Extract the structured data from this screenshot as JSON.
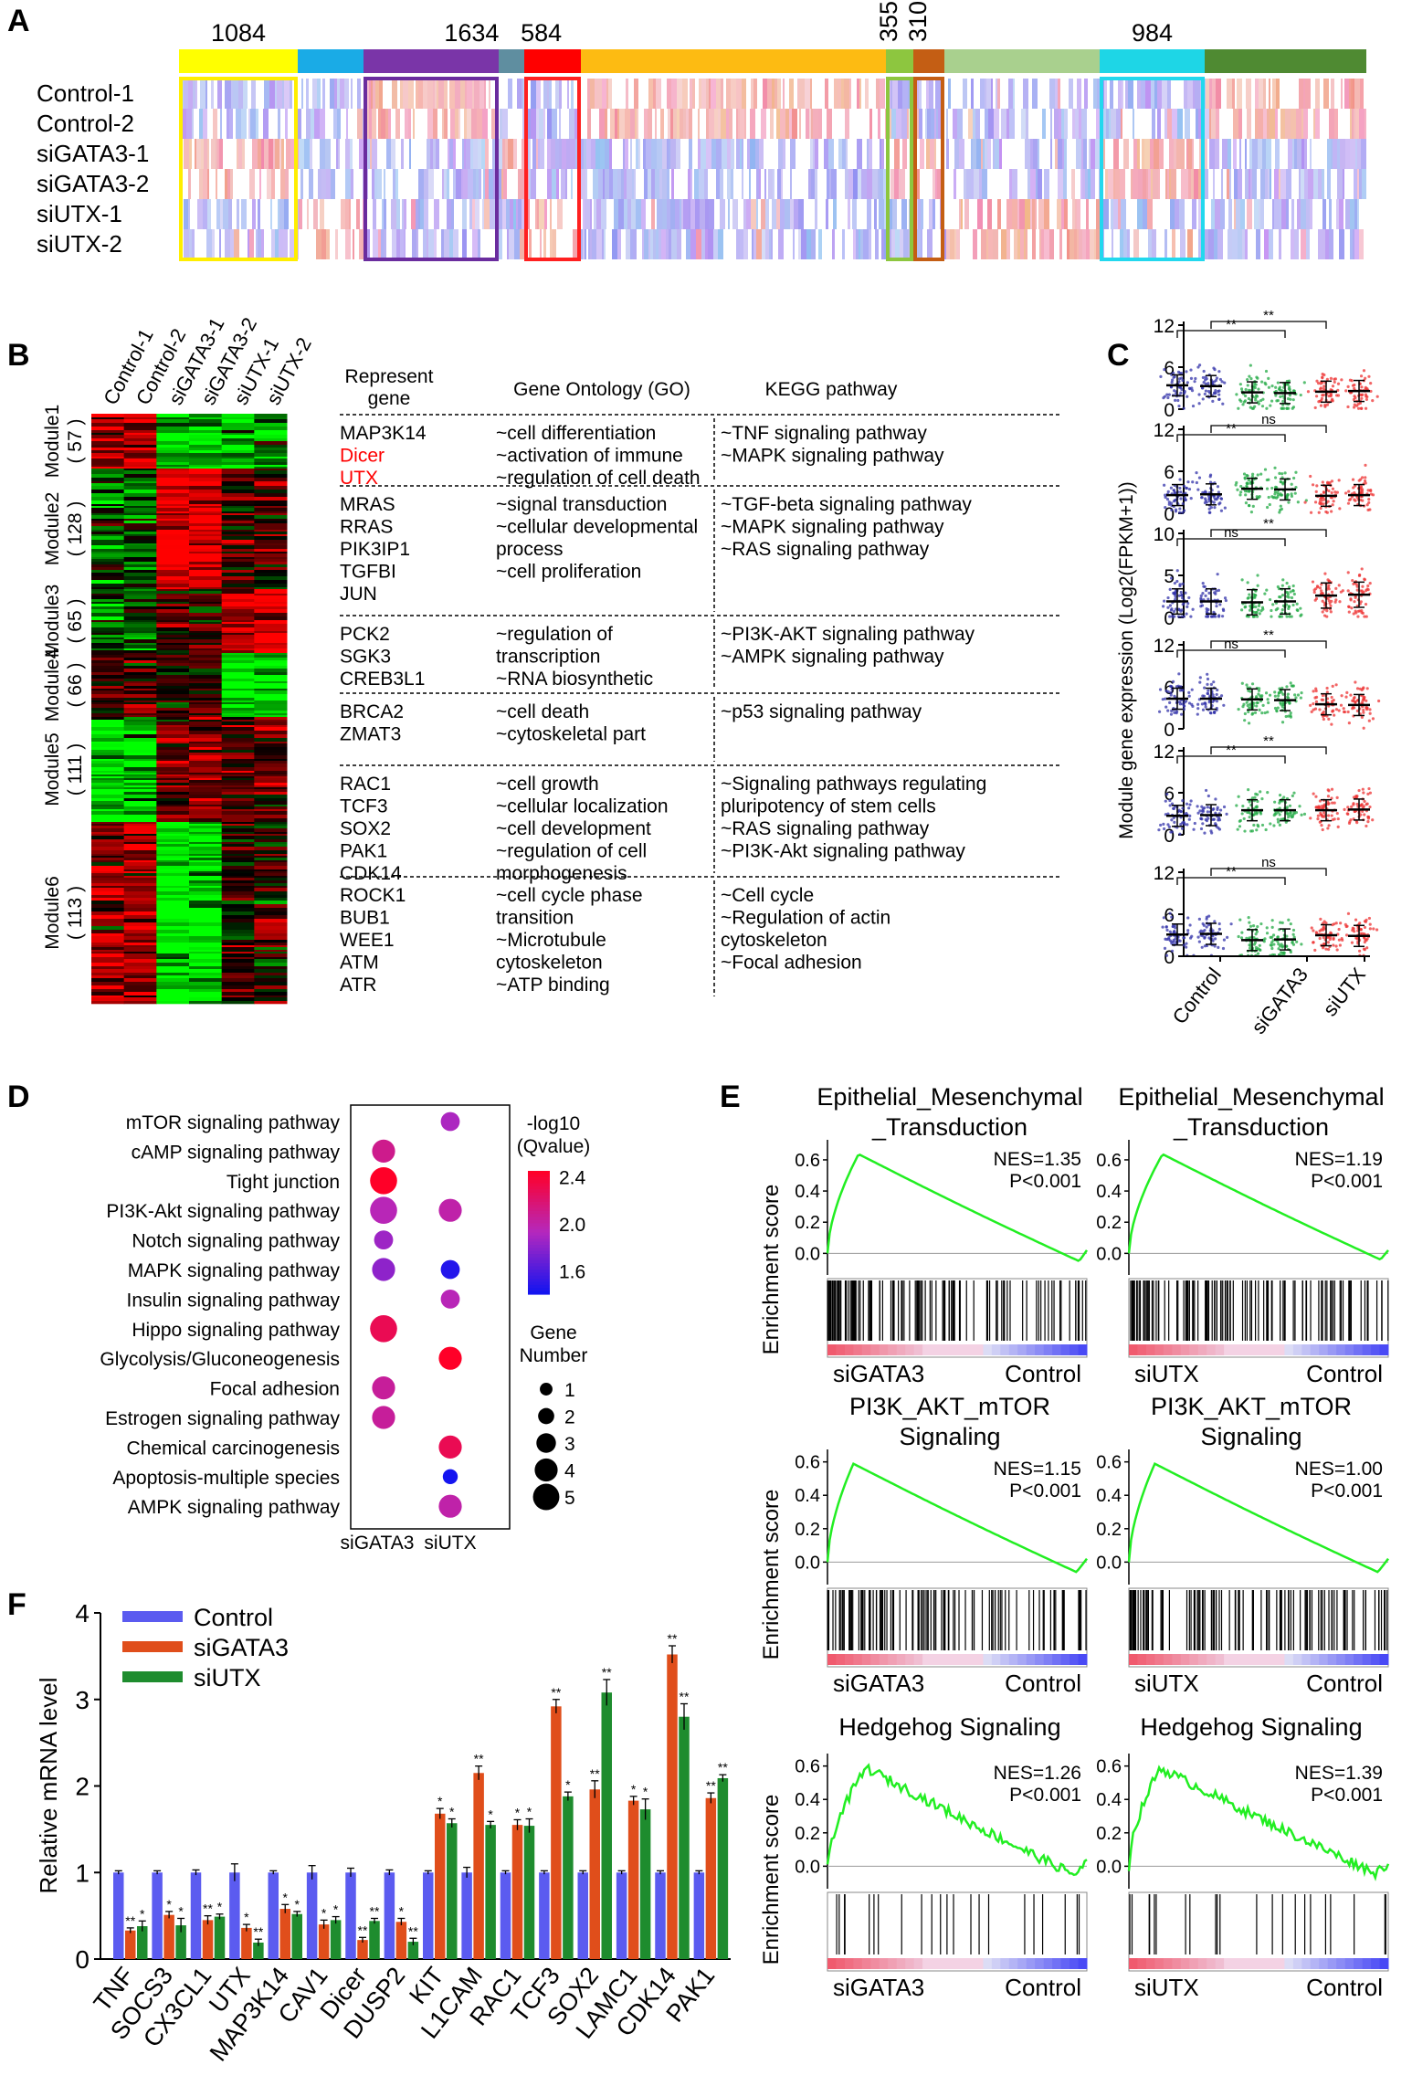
{
  "panels": {
    "A": "A",
    "B": "B",
    "C": "C",
    "D": "D",
    "E": "E",
    "F": "F"
  },
  "panelA": {
    "samples": [
      "Control-1",
      "Control-2",
      "siGATA3-1",
      "siGATA3-2",
      "siUTX-1",
      "siUTX-2"
    ],
    "segments": [
      {
        "color": "#FFFF00",
        "count": "1084"
      },
      {
        "color": "#1AABE6",
        "count": ""
      },
      {
        "color": "#7A35A8",
        "count": "1634"
      },
      {
        "color": "#5F8EA0",
        "count": ""
      },
      {
        "color": "#FF0000",
        "count": "584"
      },
      {
        "color": "#FDBB12",
        "count": ""
      },
      {
        "color": "#8DC63F",
        "count": "355"
      },
      {
        "color": "#C45E14",
        "count": "310"
      },
      {
        "color": "#A9D08E",
        "count": ""
      },
      {
        "color": "#1ED6E6",
        "count": "984"
      },
      {
        "color": "#4F8A32",
        "count": ""
      }
    ]
  },
  "panelB": {
    "heatmap_columns": [
      "Control-1",
      "Control-2",
      "siGATA3-1",
      "siGATA3-2",
      "siUTX-1",
      "siUTX-2"
    ],
    "modules": [
      {
        "name": "Module1",
        "n": "( 57 )"
      },
      {
        "name": "Module2",
        "n": "( 128 )"
      },
      {
        "name": "Module3",
        "n": "( 65 )"
      },
      {
        "name": "Module4",
        "n": "( 66 )"
      },
      {
        "name": "Module5",
        "n": "( 111 )"
      },
      {
        "name": "Module6",
        "n": "( 113 )"
      }
    ],
    "headers": {
      "gene": "Represent\ngene",
      "go": "Gene Ontology (GO)",
      "kegg": "KEGG pathway"
    },
    "rows": [
      {
        "genes": [
          "MAP3K14",
          "Dicer",
          "UTX"
        ],
        "red": [
          1,
          2
        ],
        "go": [
          "~cell differentiation",
          "~activation of immune",
          "~regulation of cell death"
        ],
        "kegg": [
          "~TNF signaling pathway",
          "~MAPK signaling pathway"
        ]
      },
      {
        "genes": [
          "MRAS",
          "RRAS",
          "PIK3IP1",
          "TGFBI",
          "JUN"
        ],
        "red": [],
        "go": [
          "~signal transduction",
          "~cellular developmental",
          "  process",
          "~cell proliferation"
        ],
        "kegg": [
          "~TGF-beta signaling pathway",
          "~MAPK signaling pathway",
          "~RAS signaling pathway"
        ]
      },
      {
        "genes": [
          "PCK2",
          "SGK3",
          "CREB3L1"
        ],
        "red": [],
        "go": [
          "~regulation of",
          "  transcription",
          "~RNA biosynthetic"
        ],
        "kegg": [
          "~PI3K-AKT signaling pathway",
          "~AMPK signaling pathway"
        ]
      },
      {
        "genes": [
          "BRCA2",
          "ZMAT3"
        ],
        "red": [],
        "go": [
          "~cell death",
          "~cytoskeletal part"
        ],
        "kegg": [
          "~p53 signaling pathway"
        ]
      },
      {
        "genes": [
          "RAC1",
          "TCF3",
          "SOX2",
          "PAK1",
          "CDK14"
        ],
        "red": [],
        "go": [
          "~cell growth",
          "~cellular localization",
          "~cell development",
          "~regulation of cell",
          "  morphogenesis"
        ],
        "kegg": [
          "~Signaling pathways regulating",
          "  pluripotency of stem cells",
          "~RAS signaling pathway",
          "~PI3K-Akt signaling pathway"
        ]
      },
      {
        "genes": [
          "ROCK1",
          "BUB1",
          "WEE1",
          "ATM",
          "ATR"
        ],
        "red": [],
        "go": [
          "~cell cycle phase",
          "  transition",
          "~Microtubule",
          "  cytoskeleton",
          "~ATP binding"
        ],
        "kegg": [
          "~Cell cycle",
          "~Regulation of actin",
          "  cytoskeleton",
          "~Focal adhesion"
        ]
      }
    ],
    "gene_red_color": "#FF0000"
  },
  "chart_data": [
    {
      "panel": "C",
      "type": "scatter",
      "ylabel": "Module gene expression (Log2(FPKM+1))",
      "groups": [
        "Control",
        "siGATA3",
        "siUTX"
      ],
      "yticks": [
        "0",
        "6",
        "12"
      ],
      "subpanels": [
        {
          "ylim": [
            0,
            12
          ],
          "ticks": [
            0,
            6,
            12
          ],
          "sig": [
            "**",
            "**"
          ],
          "means": [
            3.4,
            3.3,
            2.4,
            2.3,
            2.5,
            2.6
          ]
        },
        {
          "ylim": [
            0,
            12
          ],
          "ticks": [
            0,
            6,
            12
          ],
          "sig": [
            "**",
            "ns"
          ],
          "means": [
            2.6,
            2.7,
            3.5,
            3.4,
            2.5,
            2.6
          ]
        },
        {
          "ylim": [
            0,
            10
          ],
          "ticks": [
            0,
            5,
            10
          ],
          "sig": [
            "ns",
            "**"
          ],
          "yticks": [
            "0",
            "5",
            "10"
          ],
          "means": [
            1.9,
            1.9,
            1.8,
            1.9,
            2.6,
            2.7
          ]
        },
        {
          "ylim": [
            0,
            12
          ],
          "ticks": [
            0,
            6,
            12
          ],
          "sig": [
            "ns",
            "**"
          ],
          "means": [
            4.3,
            4.3,
            4.2,
            4.1,
            3.5,
            3.4
          ]
        },
        {
          "ylim": [
            0,
            12
          ],
          "ticks": [
            0,
            6,
            12
          ],
          "sig": [
            "**",
            "**"
          ],
          "means": [
            2.7,
            2.8,
            3.5,
            3.5,
            3.5,
            3.6
          ]
        },
        {
          "ylim": [
            0,
            12
          ],
          "ticks": [
            0,
            6,
            12
          ],
          "sig": [
            "**",
            "ns"
          ],
          "means": [
            3.1,
            3.2,
            2.3,
            2.4,
            3.0,
            2.9
          ]
        }
      ],
      "colors": [
        "#3333AA",
        "#3333AA",
        "#22AA44",
        "#22AA44",
        "#EE3333",
        "#EE3333"
      ]
    },
    {
      "panel": "D",
      "type": "scatter",
      "pathways": [
        "mTOR signaling pathway",
        "cAMP signaling pathway",
        "Tight junction",
        "PI3K-Akt signaling pathway",
        "Notch signaling pathway",
        "MAPK signaling pathway",
        "Insulin signaling pathway",
        "Hippo signaling pathway",
        "Glycolysis/Gluconeogenesis",
        "Focal adhesion",
        "Estrogen signaling pathway",
        "Chemical carcinogenesis",
        "Apoptosis-multiple species",
        "AMPK signaling pathway"
      ],
      "groups": [
        "siGATA3",
        "siUTX"
      ],
      "points": [
        {
          "p": 0,
          "g": 1,
          "q": 1.9,
          "n": 2
        },
        {
          "p": 1,
          "g": 0,
          "q": 2.1,
          "n": 3
        },
        {
          "p": 2,
          "g": 0,
          "q": 2.45,
          "n": 4
        },
        {
          "p": 3,
          "g": 0,
          "q": 1.95,
          "n": 4
        },
        {
          "p": 3,
          "g": 1,
          "q": 2.0,
          "n": 3
        },
        {
          "p": 4,
          "g": 0,
          "q": 1.85,
          "n": 2
        },
        {
          "p": 5,
          "g": 0,
          "q": 1.8,
          "n": 3
        },
        {
          "p": 5,
          "g": 1,
          "q": 1.45,
          "n": 2
        },
        {
          "p": 6,
          "g": 1,
          "q": 1.95,
          "n": 2
        },
        {
          "p": 7,
          "g": 0,
          "q": 2.3,
          "n": 4
        },
        {
          "p": 8,
          "g": 1,
          "q": 2.45,
          "n": 3
        },
        {
          "p": 9,
          "g": 0,
          "q": 2.05,
          "n": 3
        },
        {
          "p": 10,
          "g": 0,
          "q": 2.05,
          "n": 3
        },
        {
          "p": 11,
          "g": 1,
          "q": 2.3,
          "n": 3
        },
        {
          "p": 12,
          "g": 1,
          "q": 1.4,
          "n": 1
        },
        {
          "p": 13,
          "g": 1,
          "q": 2.0,
          "n": 3
        }
      ],
      "legend_color_title": [
        "-log10",
        "(Qvalue)"
      ],
      "legend_color_ticks": [
        "2.4",
        "2.0",
        "1.6"
      ],
      "legend_size_title": [
        "Gene",
        "Number"
      ],
      "legend_size_ticks": [
        "1",
        "2",
        "3",
        "4",
        "5"
      ]
    },
    {
      "panel": "E",
      "type": "line",
      "ylabel": "Enrichment score",
      "plots": [
        {
          "title": [
            "Epithelial_Mesenchymal",
            "_Transduction"
          ],
          "nes": "NES=1.35",
          "p": "P<0.001",
          "left": "siGATA3",
          "right": "Control",
          "yticks": [
            "0.6",
            "0.4",
            "0.2",
            "0.0"
          ],
          "ymax": 0.67,
          "ymin": -0.08,
          "kind": "smooth",
          "peak": 0.12,
          "endx": 0.97,
          "trough": -0.05
        },
        {
          "title": [
            "Epithelial_Mesenchymal",
            "_Transduction"
          ],
          "nes": "NES=1.19",
          "p": "P<0.001",
          "left": "siUTX",
          "right": "Control",
          "yticks": [
            "0.6",
            "0.4",
            "0.2",
            "0.0"
          ],
          "ymax": 0.67,
          "ymin": -0.08,
          "kind": "smooth",
          "peak": 0.13,
          "endx": 0.97,
          "trough": -0.04
        },
        {
          "title": [
            "PI3K_AKT_mTOR",
            "Signaling"
          ],
          "nes": "NES=1.15",
          "p": "P<0.001",
          "left": "siGATA3",
          "right": "Control",
          "yticks": [
            "0.6",
            "0.4",
            "0.2",
            "0.0"
          ],
          "ymax": 0.62,
          "ymin": -0.08,
          "kind": "smooth",
          "peak": 0.1,
          "endx": 0.96,
          "trough": -0.06
        },
        {
          "title": [
            "PI3K_AKT_mTOR",
            "Signaling"
          ],
          "nes": "NES=1.00",
          "p": "P<0.001",
          "left": "siUTX",
          "right": "Control",
          "yticks": [
            "0.6",
            "0.4",
            "0.2",
            "0.0"
          ],
          "ymax": 0.62,
          "ymin": -0.08,
          "kind": "smooth",
          "peak": 0.1,
          "endx": 0.96,
          "trough": -0.06
        },
        {
          "title": [
            "Hedgehog Signaling"
          ],
          "nes": "NES=1.26",
          "p": "P<0.001",
          "left": "siGATA3",
          "right": "Control",
          "yticks": [
            "0.6",
            "0.4",
            "0.2",
            "0.0"
          ],
          "ymax": 0.62,
          "ymin": -0.08,
          "kind": "step",
          "peak": 0.15,
          "endx": 0.95,
          "trough": -0.05
        },
        {
          "title": [
            "Hedgehog Signaling"
          ],
          "nes": "NES=1.39",
          "p": "P<0.001",
          "left": "siUTX",
          "right": "Control",
          "yticks": [
            "0.6",
            "0.4",
            "0.2",
            "0.0"
          ],
          "ymax": 0.62,
          "ymin": -0.08,
          "kind": "step",
          "peak": 0.12,
          "endx": 0.95,
          "trough": -0.04
        }
      ]
    },
    {
      "panel": "F",
      "type": "bar",
      "ylabel": "Relative mRNA level",
      "ylim": [
        0,
        4
      ],
      "yticks": [
        "0",
        "1",
        "2",
        "3",
        "4"
      ],
      "categories": [
        "TNF",
        "SOCS3",
        "CX3CL1",
        "UTX",
        "MAP3K14",
        "CAV1",
        "Dicer",
        "DUSP2",
        "KIT",
        "L1CAM",
        "RAC1",
        "TCF3",
        "SOX2",
        "LAMC1",
        "CDK14",
        "PAK1"
      ],
      "series": [
        {
          "name": "Control",
          "color": "#5B5BF0",
          "values": [
            1,
            1,
            1,
            1,
            1,
            1,
            1,
            1,
            1,
            1,
            1,
            1,
            1,
            1,
            1,
            1
          ],
          "errors": [
            0.02,
            0.02,
            0.03,
            0.1,
            0.02,
            0.08,
            0.05,
            0.03,
            0.02,
            0.06,
            0.02,
            0.02,
            0.02,
            0.02,
            0.02,
            0.02
          ],
          "sig": [
            "",
            "",
            "",
            "",
            "",
            "",
            "",
            "",
            "",
            "",
            "",
            "",
            "",
            "",
            "",
            ""
          ]
        },
        {
          "name": "siGATA3",
          "color": "#E04E1B",
          "values": [
            0.33,
            0.51,
            0.45,
            0.36,
            0.58,
            0.4,
            0.22,
            0.43,
            1.68,
            2.15,
            1.55,
            2.92,
            1.96,
            1.83,
            3.52,
            1.86
          ],
          "errors": [
            0.03,
            0.04,
            0.05,
            0.04,
            0.05,
            0.05,
            0.03,
            0.04,
            0.06,
            0.08,
            0.06,
            0.08,
            0.1,
            0.05,
            0.1,
            0.06
          ],
          "sig": [
            "**",
            "*",
            "**",
            "*",
            "*",
            "*",
            "**",
            "*",
            "*",
            "**",
            "*",
            "**",
            "**",
            "*",
            "**",
            "**"
          ]
        },
        {
          "name": "siUTX",
          "color": "#1E8C2E",
          "values": [
            0.38,
            0.39,
            0.49,
            0.19,
            0.52,
            0.45,
            0.44,
            0.2,
            1.57,
            1.55,
            1.54,
            1.88,
            3.08,
            1.73,
            2.8,
            2.09
          ],
          "errors": [
            0.06,
            0.08,
            0.03,
            0.04,
            0.03,
            0.04,
            0.03,
            0.04,
            0.05,
            0.04,
            0.08,
            0.05,
            0.15,
            0.12,
            0.15,
            0.04
          ],
          "sig": [
            "*",
            "*",
            "*",
            "**",
            "*",
            "*",
            "**",
            "**",
            "*",
            "*",
            "*",
            "*",
            "**",
            "*",
            "**",
            "**"
          ]
        }
      ]
    }
  ]
}
